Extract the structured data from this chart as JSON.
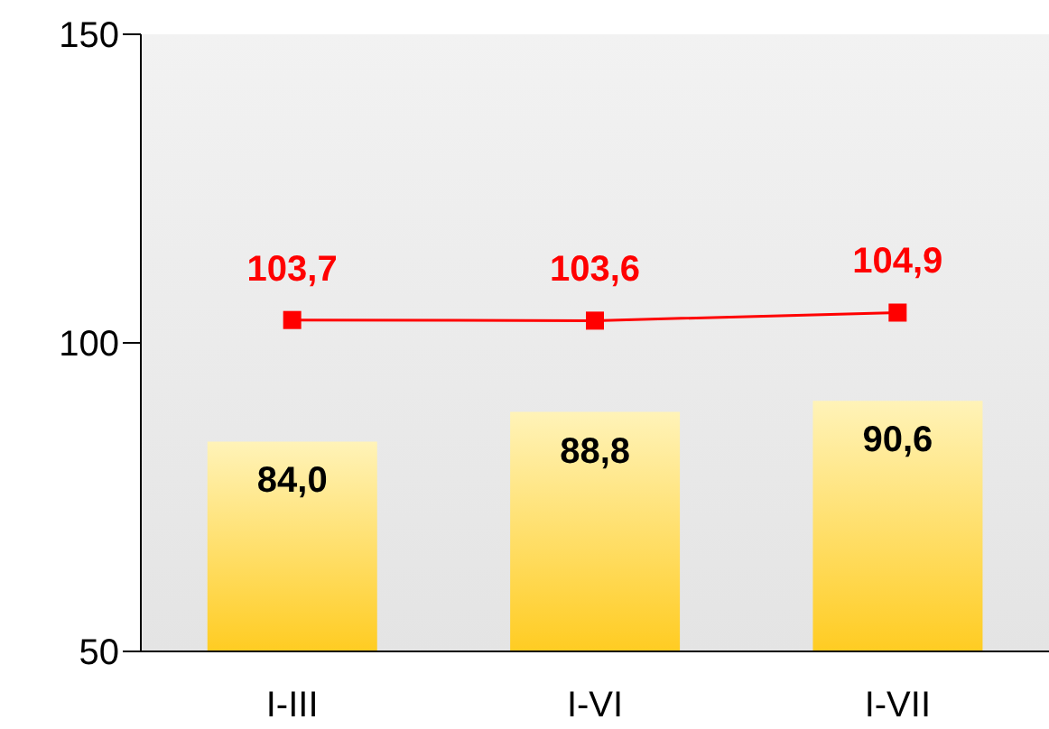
{
  "chart_data": {
    "type": "bar",
    "categories": [
      "I-III",
      "I-VI",
      "I-VII"
    ],
    "series": [
      {
        "color": "#ffcc22",
        "values": [
          84.0,
          88.8,
          90.6
        ],
        "value_labels": [
          "84,0",
          "88,8",
          "90,6"
        ]
      },
      {
        "type": "line",
        "color": "#ff0000",
        "values": [
          103.7,
          103.6,
          104.9
        ],
        "value_labels": [
          "103,7",
          "103,6",
          "104,9"
        ],
        "marker": "square"
      }
    ],
    "ylim": [
      50,
      150
    ],
    "yticks": [
      50,
      100,
      150
    ]
  }
}
